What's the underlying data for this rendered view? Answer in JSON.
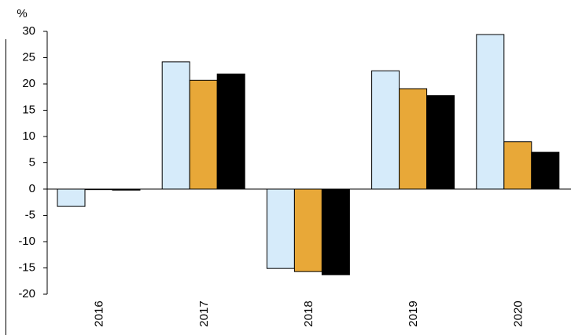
{
  "chart_data": {
    "type": "bar",
    "y_label": "%",
    "categories": [
      "2016",
      "2017",
      "2018",
      "2019",
      "2020"
    ],
    "series": [
      {
        "color": "#d6ebfa",
        "values": [
          -3.3,
          24.2,
          -15.1,
          22.5,
          29.4
        ]
      },
      {
        "color": "#e8a838",
        "values": [
          -0.1,
          20.7,
          -15.7,
          19.1,
          9.0
        ]
      },
      {
        "color": "#000000",
        "values": [
          -0.2,
          21.9,
          -16.3,
          17.8,
          7.0
        ]
      }
    ],
    "ylim": [
      -20,
      30
    ],
    "yticks": [
      -20,
      -15,
      -10,
      -5,
      0,
      5,
      10,
      15,
      20,
      25,
      30
    ]
  }
}
